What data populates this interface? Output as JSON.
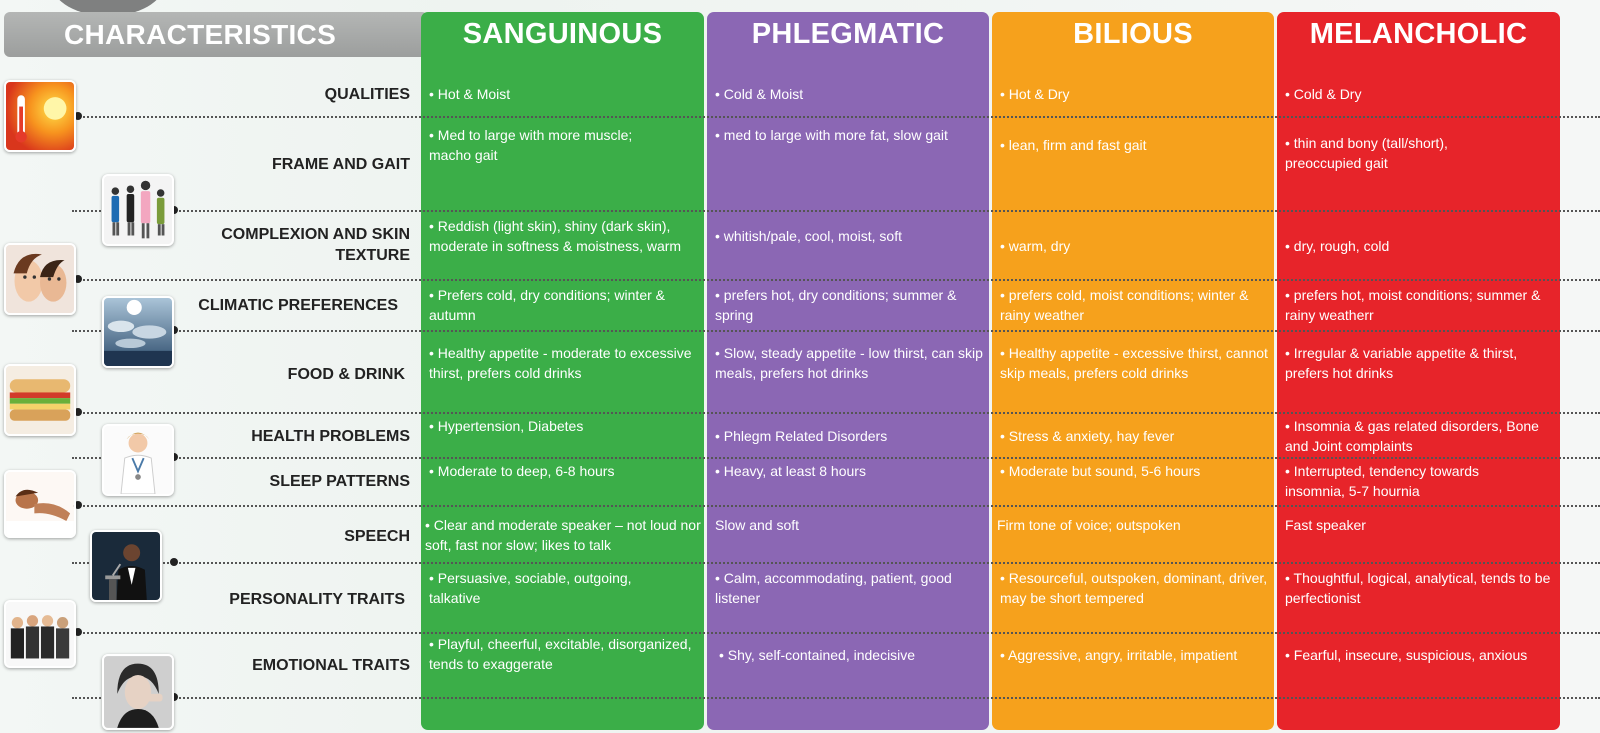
{
  "header": {
    "characteristics": "CHARACTERISTICS",
    "types": [
      "SANGUINOUS",
      "PHLEGMATIC",
      "BILIOUS",
      "MELANCHOLIC"
    ]
  },
  "colors": {
    "sanguinous": "#3bae48",
    "phlegmatic": "#8b67b4",
    "bilious": "#f6a11c",
    "melancholic": "#e7242a"
  },
  "rows": [
    {
      "label": "QUALITIES",
      "cells": [
        "• Hot & Moist",
        "• Cold & Moist",
        "• Hot & Dry",
        "• Cold & Dry"
      ]
    },
    {
      "label": "FRAME AND GAIT",
      "cells": [
        "• Med to large with more muscle; macho gait",
        "• med to large with more fat, slow gait",
        "• lean, firm and fast gait",
        "• thin and bony (tall/short), preoccupied gait"
      ]
    },
    {
      "label": "COMPLEXION AND SKIN TEXTURE",
      "cells": [
        "• Reddish (light skin), shiny (dark skin), moderate in softness & moistness, warm",
        "• whitish/pale, cool, moist, soft",
        "• warm, dry",
        "• dry, rough, cold"
      ]
    },
    {
      "label": "CLIMATIC PREFERENCES",
      "cells": [
        "• Prefers cold, dry conditions; winter & autumn",
        "• prefers hot, dry conditions; summer & spring",
        "• prefers cold, moist conditions; winter & rainy weather",
        "• prefers hot, moist conditions; summer & rainy weatherr"
      ]
    },
    {
      "label": "FOOD & DRINK",
      "cells": [
        "• Healthy appetite - moderate to excessive thirst, prefers cold drinks",
        "• Slow, steady appetite - low thirst, can skip meals, prefers hot drinks",
        "• Healthy appetite - excessive thirst, cannot skip meals, prefers cold drinks",
        "• Irregular & variable appetite & thirst, prefers hot drinks"
      ]
    },
    {
      "label": "HEALTH PROBLEMS",
      "cells": [
        "• Hypertension, Diabetes",
        "• Phlegm Related Disorders",
        "• Stress & anxiety, hay fever",
        "• Insomnia & gas related disorders, Bone and Joint complaints"
      ]
    },
    {
      "label": "SLEEP PATTERNS",
      "cells": [
        "• Moderate to deep, 6-8 hours",
        "• Heavy, at least 8 hours",
        "• Moderate but sound, 5-6 hours",
        "• Interrupted, tendency towards insomnia, 5-7 hournia"
      ]
    },
    {
      "label": "SPEECH",
      "cells": [
        "• Clear and moderate speaker – not loud nor soft, fast nor slow; likes to talk",
        "Slow and soft",
        "Firm tone of voice; outspoken",
        "Fast speaker"
      ]
    },
    {
      "label": "PERSONALITY TRAITS",
      "cells": [
        "• Persuasive, sociable, outgoing, talkative",
        "• Calm, accommodating, patient, good listener",
        "• Resourceful, outspoken, dominant, driver, may be short tempered",
        "• Thoughtful, logical, analytical, tends to be perfectionist"
      ]
    },
    {
      "label": "EMOTIONAL TRAITS",
      "cells": [
        "• Playful, cheerful, excitable, disorganized, tends to exaggerate",
        "• Shy, self-contained, indecisive",
        "• Aggressive, angry, irritable, impatient",
        "• Fearful, insecure, suspicious, anxious"
      ]
    }
  ],
  "images": [
    {
      "icon": "thermometer-sun-icon"
    },
    {
      "icon": "people-group-icon"
    },
    {
      "icon": "faces-icon"
    },
    {
      "icon": "sky-clouds-icon"
    },
    {
      "icon": "sandwich-icon"
    },
    {
      "icon": "doctor-icon"
    },
    {
      "icon": "sleeping-person-icon"
    },
    {
      "icon": "speaker-podium-icon"
    },
    {
      "icon": "business-group-icon"
    },
    {
      "icon": "woman-portrait-icon"
    }
  ]
}
